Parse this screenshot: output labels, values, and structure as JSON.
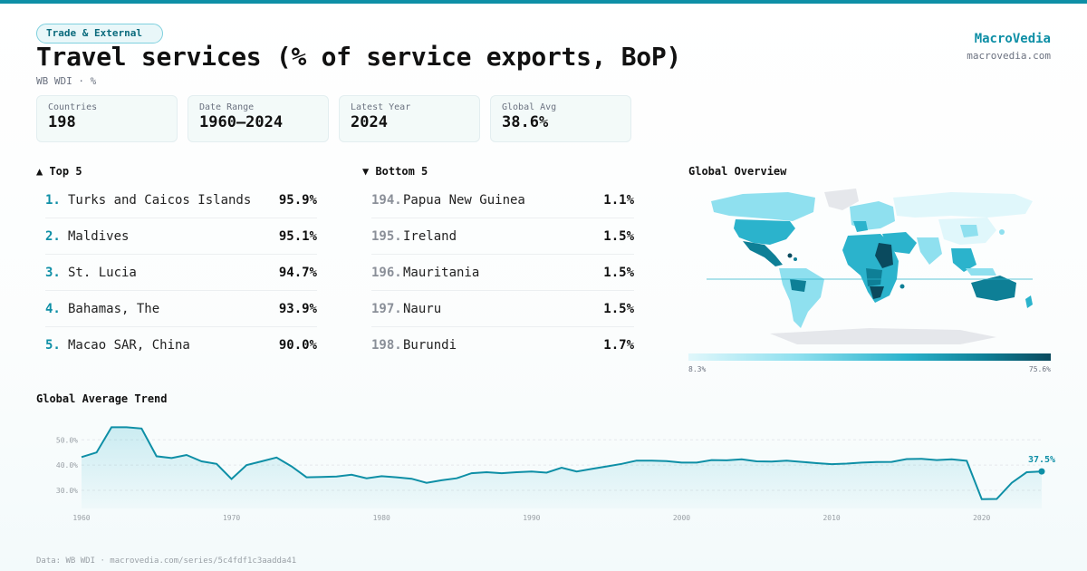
{
  "header": {
    "category": "Trade & External",
    "title": "Travel services (% of service exports, BoP)",
    "subtitle": "WB WDI · %",
    "brand": "MacroVedia",
    "brand_url": "macrovedia.com"
  },
  "stats": [
    {
      "label": "Countries",
      "value": "198"
    },
    {
      "label": "Date Range",
      "value": "1960–2024"
    },
    {
      "label": "Latest Year",
      "value": "2024"
    },
    {
      "label": "Global Avg",
      "value": "38.6%"
    }
  ],
  "top5": {
    "heading": "▲ Top 5",
    "items": [
      {
        "rank": "1.",
        "name": "Turks and Caicos Islands",
        "value": "95.9%"
      },
      {
        "rank": "2.",
        "name": "Maldives",
        "value": "95.1%"
      },
      {
        "rank": "3.",
        "name": "St. Lucia",
        "value": "94.7%"
      },
      {
        "rank": "4.",
        "name": "Bahamas, The",
        "value": "93.9%"
      },
      {
        "rank": "5.",
        "name": "Macao SAR, China",
        "value": "90.0%"
      }
    ]
  },
  "bottom5": {
    "heading": "▼ Bottom 5",
    "items": [
      {
        "rank": "194.",
        "name": "Papua New Guinea",
        "value": "1.1%"
      },
      {
        "rank": "195.",
        "name": "Ireland",
        "value": "1.5%"
      },
      {
        "rank": "196.",
        "name": "Mauritania",
        "value": "1.5%"
      },
      {
        "rank": "197.",
        "name": "Nauru",
        "value": "1.5%"
      },
      {
        "rank": "198.",
        "name": "Burundi",
        "value": "1.7%"
      }
    ]
  },
  "map": {
    "heading": "Global Overview",
    "scale_min": "8.3%",
    "scale_max": "75.6%",
    "colors": {
      "low": "#e0f7fb",
      "mid": "#2bb3cc",
      "high": "#0a4a5e",
      "nodata": "#e5e7eb"
    }
  },
  "chart_data": {
    "type": "area",
    "title": "Global Average Trend",
    "xlabel": "",
    "ylabel": "%",
    "x": [
      1960,
      1961,
      1962,
      1963,
      1964,
      1965,
      1966,
      1967,
      1968,
      1969,
      1970,
      1971,
      1972,
      1973,
      1974,
      1975,
      1976,
      1977,
      1978,
      1979,
      1980,
      1981,
      1982,
      1983,
      1984,
      1985,
      1986,
      1987,
      1988,
      1989,
      1990,
      1991,
      1992,
      1993,
      1994,
      1995,
      1996,
      1997,
      1998,
      1999,
      2000,
      2001,
      2002,
      2003,
      2004,
      2005,
      2006,
      2007,
      2008,
      2009,
      2010,
      2011,
      2012,
      2013,
      2014,
      2015,
      2016,
      2017,
      2018,
      2019,
      2020,
      2021,
      2022,
      2023,
      2024
    ],
    "values": [
      43.2,
      45.0,
      55.0,
      55.0,
      54.5,
      43.5,
      42.8,
      44.0,
      41.5,
      40.5,
      34.5,
      40.0,
      41.5,
      43.0,
      39.5,
      35.2,
      35.3,
      35.5,
      36.2,
      34.8,
      35.6,
      35.2,
      34.6,
      33.0,
      34.0,
      34.8,
      36.8,
      37.2,
      36.8,
      37.2,
      37.5,
      37.0,
      39.0,
      37.5,
      38.5,
      39.5,
      40.5,
      41.8,
      41.8,
      41.6,
      41.0,
      41.0,
      42.0,
      41.9,
      42.3,
      41.5,
      41.4,
      41.8,
      41.3,
      40.8,
      40.4,
      40.6,
      41.0,
      41.2,
      41.3,
      42.4,
      42.5,
      42.0,
      42.3,
      41.7,
      26.5,
      26.6,
      33.0,
      37.2,
      37.5
    ],
    "ylim": [
      25,
      58
    ],
    "yticks": [
      30,
      40,
      50
    ],
    "ytick_labels": [
      "30.0%",
      "40.0%",
      "50.0%"
    ],
    "xticks": [
      1960,
      1970,
      1980,
      1990,
      2000,
      2010,
      2020
    ],
    "xtick_labels": [
      "1960",
      "1970",
      "1980",
      "1990",
      "2000",
      "2010",
      "2020"
    ],
    "last_label": "37.5%",
    "grid": true,
    "color": "#0e8fa6"
  },
  "footer": "Data: WB WDI · macrovedia.com/series/5c4fdf1c3aadda41"
}
